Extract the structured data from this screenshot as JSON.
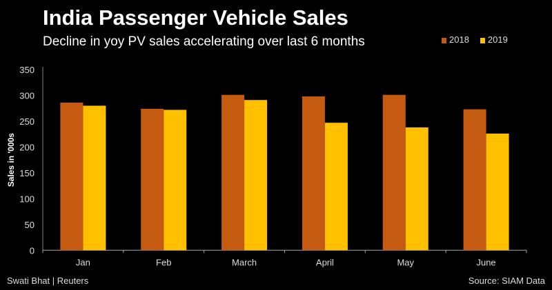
{
  "chart_data": {
    "type": "bar",
    "title": "India Passenger Vehicle Sales",
    "subtitle": "Decline in yoy PV sales accelerating over last 6 months",
    "ylabel": "Sales in '000s",
    "xlabel": "",
    "ylim": [
      0,
      350
    ],
    "yticks": [
      0,
      50,
      100,
      150,
      200,
      250,
      300,
      350
    ],
    "categories": [
      "Jan",
      "Feb",
      "March",
      "April",
      "May",
      "June"
    ],
    "series": [
      {
        "name": "2018",
        "color": "#c55a11",
        "values": [
          286,
          274,
          301,
          298,
          301,
          273
        ]
      },
      {
        "name": "2019",
        "color": "#ffc000",
        "values": [
          280,
          272,
          291,
          247,
          238,
          226
        ]
      }
    ],
    "legend": "top-right",
    "grid": false
  },
  "footer": {
    "credit": "Swati Bhat | Reuters",
    "source": "Source: SIAM Data"
  }
}
